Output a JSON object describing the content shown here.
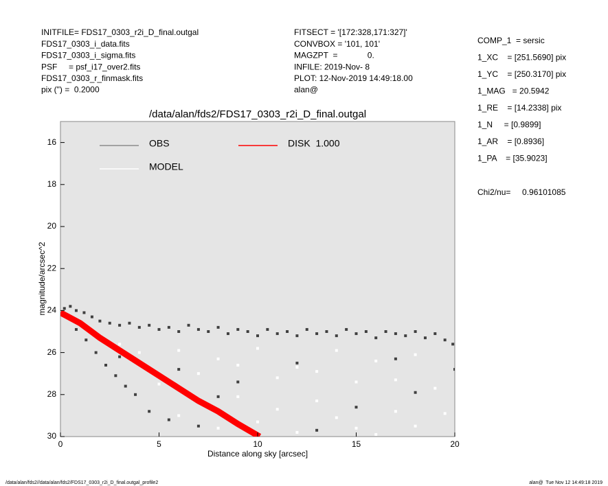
{
  "chart_data": {
    "type": "scatter",
    "title": "/data/alan/fds2/FDS17_0303_r2i_D_final.outgal",
    "xlabel": "Distance along sky [arcsec]",
    "ylabel": "magnitude/arcsec^2",
    "header_left": [
      "INITFILE= FDS17_0303_r2i_D_final.outgal",
      "FDS17_0303_i_data.fits",
      "FDS17_0303_i_sigma.fits",
      "PSF     = psf_i17_over2.fits",
      "FDS17_0303_r_finmask.fits",
      "pix (\") =  0.2000"
    ],
    "header_middle": [
      "FITSECT = '[172:328,171:327]'",
      "CONVBOX = '101, 101'",
      "MAGZPT  =             0.",
      "INFILE: 2019-Nov- 8",
      "PLOT: 12-Nov-2019 14:49:18.00",
      "alan@"
    ],
    "header_right": [
      "COMP_1  = sersic",
      "1_XC    = [251.5690] pix",
      "1_YC    = [250.3170] pix",
      "1_MAG   = 20.5942",
      "1_RE    = [14.2338] pix",
      "1_N     = [0.9899]",
      "1_AR    = [0.8936]",
      "1_PA    = [35.9023]"
    ],
    "chi2": "Chi2/nu=     0.96101085",
    "footer_left": "/data/alan/fds2//data/alan/fds2/FDS17_0303_r2i_D_final.outgal_profile2",
    "footer_right": "alan@  Tue Nov 12 14:49:18 2019",
    "xlim": [
      0,
      20
    ],
    "ylim": [
      30,
      15
    ],
    "xticks": [
      0,
      5,
      10,
      15,
      20
    ],
    "yticks": [
      16,
      18,
      20,
      22,
      24,
      26,
      28,
      30
    ],
    "background": "#e5e5e5",
    "series": [
      {
        "name": "OBS",
        "color": "#8c8c8c",
        "point_color": "#404040",
        "mode": "markers",
        "x": [
          0.2,
          0.5,
          0.8,
          1.2,
          1.6,
          2.0,
          2.5,
          3,
          3.5,
          4,
          4.5,
          5,
          5.5,
          6,
          6.5,
          7,
          7.5,
          8,
          8.5,
          9,
          9.5,
          10,
          10.5,
          11,
          11.5,
          12,
          12.5,
          13,
          13.5,
          14,
          14.5,
          15,
          15.5,
          16,
          16.5,
          17,
          17.5,
          18,
          18.5,
          19,
          19.5,
          19.9,
          0.8,
          1.3,
          1.8,
          2.3,
          2.8,
          3.3,
          3.8,
          4.5,
          5.5,
          7,
          3,
          6,
          9,
          12,
          15,
          18,
          13,
          8,
          17,
          20
        ],
        "values": [
          23.9,
          23.8,
          24.0,
          24.1,
          24.3,
          24.5,
          24.6,
          24.7,
          24.6,
          24.8,
          24.7,
          24.9,
          24.8,
          25.0,
          24.7,
          24.9,
          25.0,
          24.8,
          25.1,
          24.9,
          25.0,
          25.2,
          24.9,
          25.1,
          25.0,
          25.2,
          24.9,
          25.1,
          25.0,
          25.2,
          24.9,
          25.1,
          25.0,
          25.3,
          25.0,
          25.1,
          25.2,
          25.0,
          25.3,
          25.1,
          25.4,
          25.6,
          24.9,
          25.4,
          26.0,
          26.6,
          27.1,
          27.6,
          28.0,
          28.8,
          29.2,
          29.5,
          26.2,
          26.8,
          27.4,
          26.5,
          28.6,
          27.9,
          29.7,
          28.1,
          26.3,
          26.8
        ]
      },
      {
        "name": "MODEL",
        "color": "#ffffff",
        "point_color": "#ffffff",
        "mode": "markers",
        "x": [
          4,
          6,
          8,
          10,
          12,
          14,
          16,
          18,
          5,
          7,
          9,
          11,
          13,
          15,
          17,
          19,
          6,
          8,
          10,
          12,
          14,
          16,
          18,
          19.5,
          11,
          13,
          15,
          17,
          3,
          9
        ],
        "values": [
          26.0,
          25.9,
          26.3,
          25.8,
          26.7,
          25.9,
          26.4,
          26.1,
          27.5,
          27.0,
          28.1,
          27.2,
          28.3,
          27.4,
          28.8,
          27.7,
          29.0,
          29.6,
          29.3,
          29.8,
          29.1,
          29.9,
          29.5,
          28.9,
          28.7,
          26.9,
          29.6,
          27.3,
          25.6,
          26.6
        ]
      },
      {
        "name": "DISK  1.000",
        "color": "#ff0000",
        "point_color": "#ff0000",
        "mode": "band",
        "x": [
          0,
          1,
          2,
          3,
          4,
          5,
          6,
          7,
          8,
          9,
          10.1
        ],
        "values": [
          24.1,
          24.6,
          25.3,
          25.9,
          26.5,
          27.1,
          27.7,
          28.3,
          28.8,
          29.4,
          30
        ]
      }
    ]
  }
}
